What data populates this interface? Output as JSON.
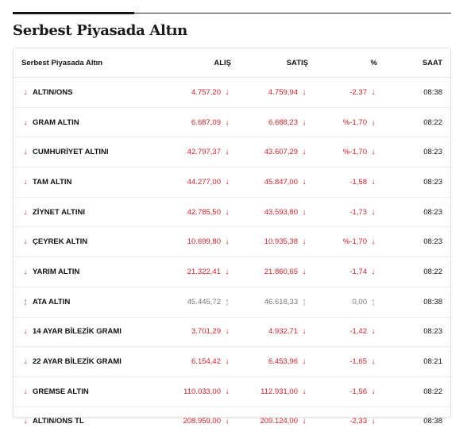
{
  "title": "Serbest Piyasada Altın",
  "columns": {
    "name": "Serbest Piyasada Altın",
    "alis": "ALIŞ",
    "satis": "SATIŞ",
    "pct": "%",
    "saat": "SAAT"
  },
  "rows": [
    {
      "name": "ALTIN/ONS",
      "alis": "4.757,20",
      "satis": "4.759,94",
      "pct": "-2,37",
      "saat": "08:38",
      "trend": "down"
    },
    {
      "name": "GRAM ALTIN",
      "alis": "6.687,09",
      "satis": "6.688,23",
      "pct": "%-1,70",
      "saat": "08:22",
      "trend": "down"
    },
    {
      "name": "CUMHURİYET ALTINI",
      "alis": "42.797,37",
      "satis": "43.607,29",
      "pct": "%-1,70",
      "saat": "08:23",
      "trend": "down"
    },
    {
      "name": "TAM ALTIN",
      "alis": "44.277,00",
      "satis": "45.847,00",
      "pct": "-1,58",
      "saat": "08:23",
      "trend": "down"
    },
    {
      "name": "ZİYNET ALTINI",
      "alis": "42.785,50",
      "satis": "43.593,80",
      "pct": "-1,73",
      "saat": "08:23",
      "trend": "down"
    },
    {
      "name": "ÇEYREK ALTIN",
      "alis": "10.699,80",
      "satis": "10.935,38",
      "pct": "%-1,70",
      "saat": "08:23",
      "trend": "down"
    },
    {
      "name": "YARIM ALTIN",
      "alis": "21.322,41",
      "satis": "21.860,65",
      "pct": "-1,74",
      "saat": "08:22",
      "trend": "down"
    },
    {
      "name": "ATA ALTIN",
      "alis": "45.445,72",
      "satis": "46.618,33",
      "pct": "0,00",
      "saat": "08:38",
      "trend": "flat"
    },
    {
      "name": "14 AYAR BİLEZİK GRAMI",
      "alis": "3.701,29",
      "satis": "4.932,71",
      "pct": "-1,42",
      "saat": "08:23",
      "trend": "down"
    },
    {
      "name": "22 AYAR BİLEZİK GRAMI",
      "alis": "6.154,42",
      "satis": "6.453,96",
      "pct": "-1,65",
      "saat": "08:21",
      "trend": "down"
    },
    {
      "name": "GREMSE ALTIN",
      "alis": "110.033,00",
      "satis": "112.931,00",
      "pct": "-1,56",
      "saat": "08:22",
      "trend": "down"
    },
    {
      "name": "ALTIN/ONS TL",
      "alis": "208.959,00",
      "satis": "209.124,00",
      "pct": "-2,33",
      "saat": "08:38",
      "trend": "down"
    }
  ],
  "icons": {
    "down": "arrow-down-icon",
    "flat": "flat-indicator-icon"
  },
  "colors": {
    "down": "#d0202a",
    "flat": "#777777",
    "text": "#111111"
  }
}
